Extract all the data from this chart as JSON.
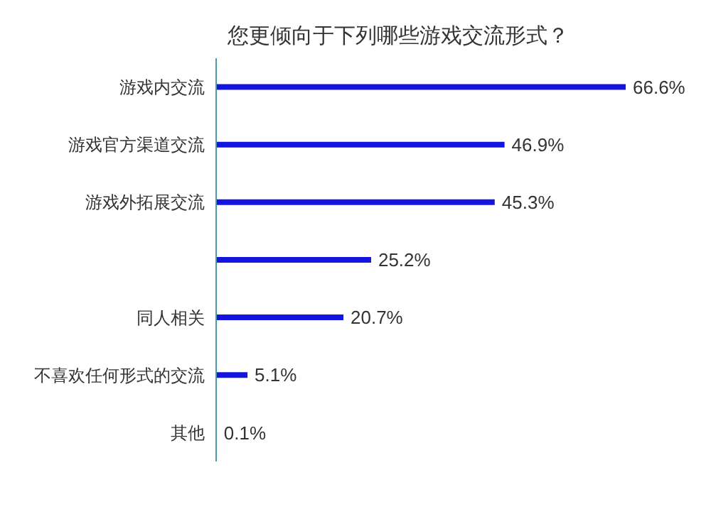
{
  "chart_data": {
    "type": "bar",
    "orientation": "horizontal",
    "title": "您更倾向于下列哪些游戏交流形式？",
    "categories": [
      "游戏内交流",
      "游戏官方渠道交流",
      "游戏外拓展交流",
      null,
      "同人相关",
      "不喜欢任何形式的交流",
      "其他"
    ],
    "values": [
      66.6,
      46.9,
      45.3,
      25.2,
      20.7,
      5.1,
      0.1
    ],
    "value_labels": [
      "66.6%",
      "46.9%",
      "45.3%",
      "25.2%",
      "20.7%",
      "5.1%",
      "0.1%"
    ],
    "color": "#1414e0",
    "grid": false,
    "legend": false
  }
}
